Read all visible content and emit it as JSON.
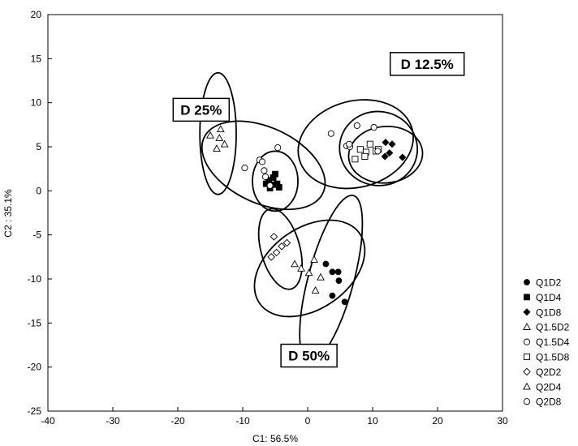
{
  "chart_data": {
    "type": "scatter",
    "xlabel": "C1: 56.5%",
    "ylabel": "C2 : 35.1%",
    "xlim": [
      -40,
      30
    ],
    "ylim": [
      -25,
      20
    ],
    "xticks": [
      -40,
      -30,
      -20,
      -10,
      0,
      10,
      20,
      30
    ],
    "yticks": [
      -25,
      -20,
      -15,
      -10,
      -5,
      0,
      5,
      10,
      15,
      20
    ],
    "grid": false,
    "legend_position": "right",
    "series": [
      {
        "name": "Q1D2",
        "marker": "circle-filled",
        "points": [
          [
            2.8,
            -8.3
          ],
          [
            3.8,
            -9.2
          ],
          [
            4.7,
            -9.2
          ],
          [
            4.8,
            -10.2
          ],
          [
            3.8,
            -11.9
          ],
          [
            5.7,
            -12.6
          ]
        ]
      },
      {
        "name": "Q1D4",
        "marker": "square-filled",
        "points": [
          [
            -6.0,
            1.2
          ],
          [
            -5.3,
            1.5
          ],
          [
            -5.2,
            0.7
          ],
          [
            -4.7,
            0.8
          ],
          [
            -4.4,
            0.4
          ],
          [
            -6.4,
            0.8
          ],
          [
            -5.8,
            0.3
          ],
          [
            -5.0,
            1.9
          ]
        ]
      },
      {
        "name": "Q1D8",
        "marker": "diamond-filled",
        "points": [
          [
            12.0,
            5.5
          ],
          [
            13.0,
            5.3
          ],
          [
            12.6,
            4.3
          ],
          [
            11.9,
            3.9
          ],
          [
            14.6,
            3.8
          ]
        ]
      },
      {
        "name": "Q1.5D2",
        "marker": "triangle-open",
        "points": [
          [
            1.0,
            -7.8
          ],
          [
            -1.0,
            -8.8
          ],
          [
            0.2,
            -9.3
          ],
          [
            -2.0,
            -8.3
          ],
          [
            1.2,
            -11.3
          ],
          [
            2.0,
            -9.8
          ]
        ]
      },
      {
        "name": "Q1.5D4",
        "marker": "circle-open",
        "points": [
          [
            -9.7,
            2.6
          ],
          [
            -7.4,
            3.5
          ],
          [
            -7.0,
            3.3
          ],
          [
            -6.7,
            2.3
          ],
          [
            -5.8,
            0.6
          ],
          [
            -4.6,
            4.9
          ],
          [
            -6.5,
            1.6
          ]
        ]
      },
      {
        "name": "Q1.5D8",
        "marker": "square-open",
        "points": [
          [
            7.3,
            3.6
          ],
          [
            8.1,
            4.7
          ],
          [
            9.0,
            4.4
          ],
          [
            9.6,
            5.3
          ],
          [
            10.5,
            4.5
          ],
          [
            10.9,
            4.7
          ],
          [
            8.8,
            3.9
          ]
        ]
      },
      {
        "name": "Q2D2",
        "marker": "diamond-open",
        "points": [
          [
            -5.2,
            -5.2
          ],
          [
            -4.0,
            -6.3
          ],
          [
            -3.2,
            -5.9
          ],
          [
            -4.8,
            -7.0
          ],
          [
            -5.6,
            -7.5
          ]
        ]
      },
      {
        "name": "Q2D4",
        "marker": "triangle-open",
        "points": [
          [
            -13.6,
            8.2
          ],
          [
            -13.4,
            7.0
          ],
          [
            -15.0,
            6.3
          ],
          [
            -13.6,
            6.0
          ],
          [
            -12.8,
            5.3
          ],
          [
            -14.0,
            4.8
          ]
        ]
      },
      {
        "name": "Q2D8",
        "marker": "circle-open",
        "points": [
          [
            3.6,
            6.5
          ],
          [
            6.0,
            5.1
          ],
          [
            6.5,
            5.0
          ],
          [
            7.6,
            7.4
          ],
          [
            10.2,
            7.2
          ],
          [
            10.8,
            4.5
          ],
          [
            6.4,
            5.3
          ]
        ]
      }
    ],
    "ellipses": [
      {
        "cx": -13.8,
        "cy": 6.5,
        "rx": 2.8,
        "ry": 6.9,
        "angle": 0
      },
      {
        "cx": -6.8,
        "cy": 2.9,
        "rx": 10.1,
        "ry": 4.3,
        "angle": 25
      },
      {
        "cx": -5.0,
        "cy": 1.1,
        "rx": 3.5,
        "ry": 3.4,
        "angle": 0
      },
      {
        "cx": 7.4,
        "cy": 5.3,
        "rx": 9.0,
        "ry": 4.9,
        "angle": -15
      },
      {
        "cx": 10.9,
        "cy": 4.8,
        "rx": 6.0,
        "ry": 4.2,
        "angle": 10
      },
      {
        "cx": 12.0,
        "cy": 4.1,
        "rx": 5.7,
        "ry": 3.2,
        "angle": -5
      },
      {
        "cx": -4.2,
        "cy": -6.6,
        "rx": 3.0,
        "ry": 4.7,
        "angle": -15
      },
      {
        "cx": 0.3,
        "cy": -8.8,
        "rx": 9.4,
        "ry": 4.6,
        "angle": -35
      },
      {
        "cx": 3.6,
        "cy": -10.0,
        "rx": 3.5,
        "ry": 9.8,
        "angle": 15
      }
    ],
    "group_labels": [
      {
        "text": "D 25%",
        "x": -16.4,
        "y": 9.2
      },
      {
        "text": "D 12.5%",
        "x": 18.4,
        "y": 14.4
      },
      {
        "text": "D 50%",
        "x": 0.2,
        "y": -18.7
      }
    ]
  }
}
